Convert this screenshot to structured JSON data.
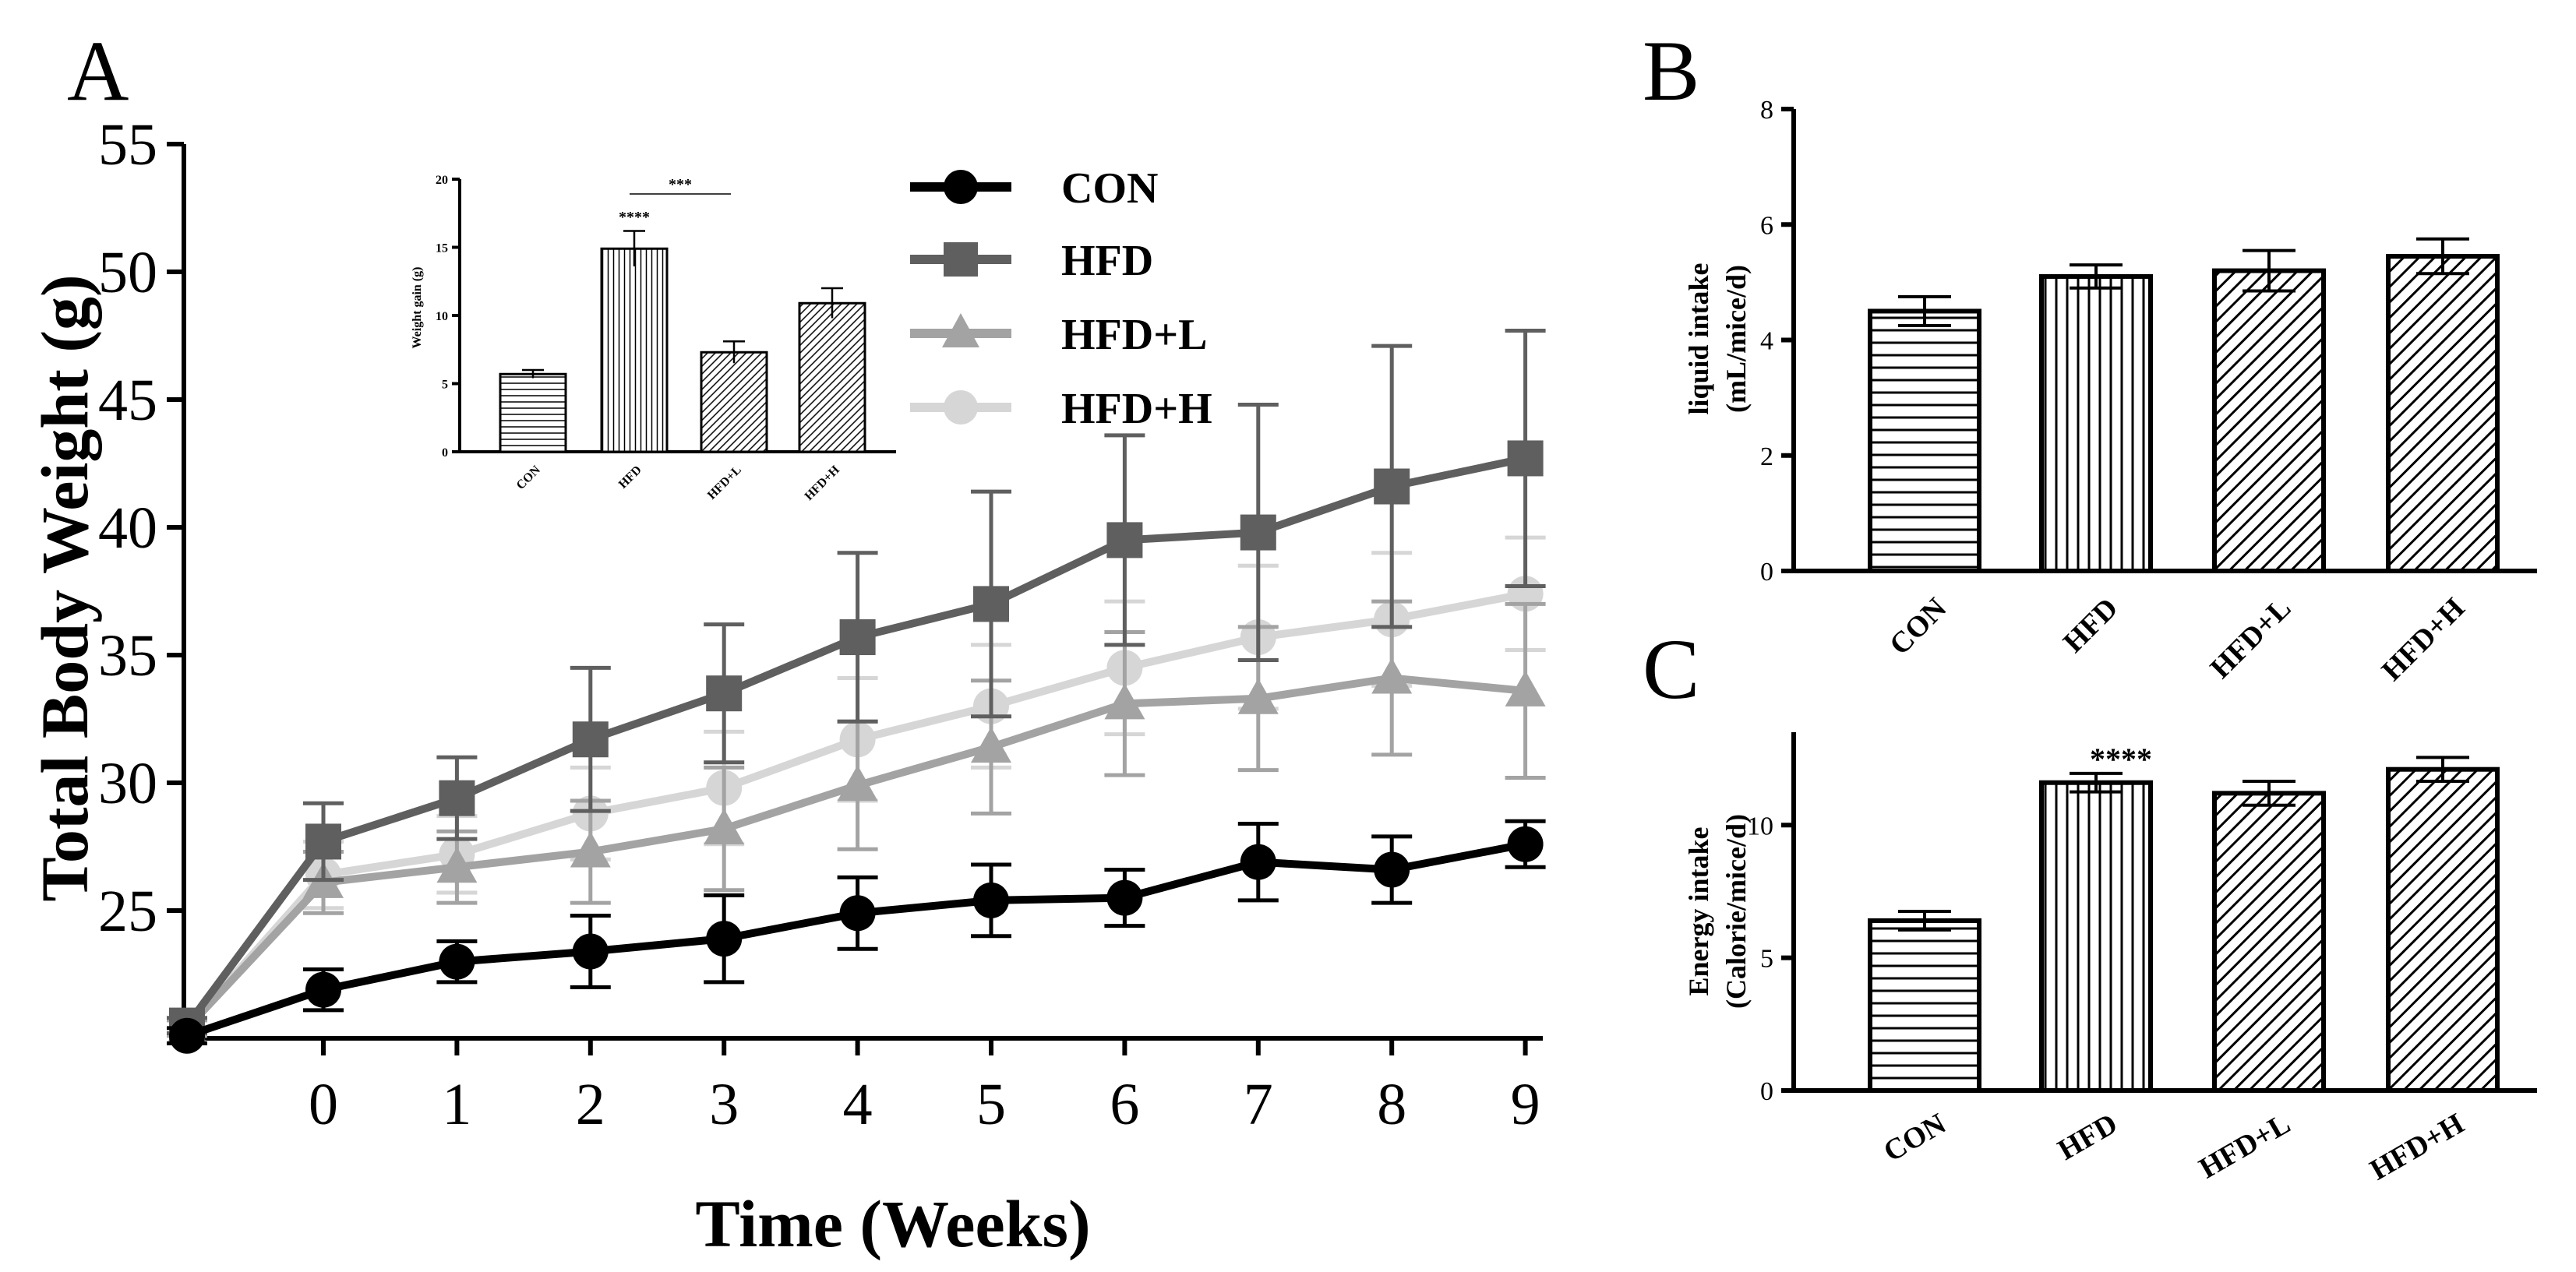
{
  "panels": {
    "A": "A",
    "B": "B",
    "C": "C"
  },
  "chart_data": [
    {
      "id": "A",
      "type": "line",
      "title": "",
      "xlabel": "Time (Weeks)",
      "ylabel": "Total Body Weight (g)",
      "x": [
        "",
        "0",
        "1",
        "2",
        "3",
        "4",
        "5",
        "6",
        "7",
        "8",
        "9"
      ],
      "ylim": [
        20,
        55
      ],
      "yticks": [
        "25",
        "30",
        "35",
        "40",
        "45",
        "50",
        "55"
      ],
      "series": [
        {
          "name": "CON",
          "color": "#000000",
          "marker": "circle",
          "values": [
            20.1,
            21.9,
            23.0,
            23.4,
            23.9,
            24.9,
            25.4,
            25.5,
            26.9,
            26.6,
            27.6
          ],
          "errors": [
            0.3,
            0.8,
            0.8,
            1.4,
            1.7,
            1.4,
            1.4,
            1.1,
            1.5,
            1.3,
            0.9
          ]
        },
        {
          "name": "HFD",
          "color": "#5f5f5f",
          "marker": "square",
          "values": [
            20.5,
            27.7,
            29.4,
            31.7,
            33.5,
            35.7,
            37.0,
            39.5,
            39.8,
            41.6,
            42.7
          ],
          "errors": [
            0.3,
            1.5,
            1.6,
            2.8,
            2.7,
            3.3,
            4.4,
            4.1,
            5.0,
            5.5,
            5.0
          ]
        },
        {
          "name": "HFD+L",
          "color": "#a3a3a3",
          "marker": "triangle",
          "values": [
            20.4,
            26.1,
            26.7,
            27.3,
            28.2,
            29.9,
            31.4,
            33.1,
            33.3,
            34.1,
            33.6
          ],
          "errors": [
            0.3,
            1.2,
            1.4,
            2.0,
            2.4,
            2.5,
            2.6,
            2.8,
            2.8,
            3.0,
            3.4
          ]
        },
        {
          "name": "HFD+H",
          "color": "#d6d6d6",
          "marker": "circle",
          "values": [
            20.4,
            26.4,
            27.2,
            28.8,
            29.8,
            31.7,
            33.0,
            34.5,
            35.7,
            36.4,
            37.4
          ],
          "errors": [
            0.3,
            1.3,
            1.5,
            1.8,
            2.2,
            2.4,
            2.4,
            2.6,
            2.8,
            2.6,
            2.2
          ]
        }
      ],
      "inset": {
        "type": "bar",
        "ylabel": "Weight gain (g)",
        "categories": [
          "CON",
          "HFD",
          "HFD+L",
          "HFD+H"
        ],
        "values": [
          5.7,
          14.9,
          7.3,
          10.9
        ],
        "errors": [
          0.3,
          1.3,
          0.8,
          1.1
        ],
        "ylim": [
          0,
          20
        ],
        "yticks": [
          "0",
          "5",
          "10",
          "15",
          "20"
        ],
        "annotations": [
          {
            "text": "****",
            "category": "HFD"
          },
          {
            "text": "***",
            "from": "HFD",
            "to": "HFD+L"
          }
        ]
      }
    },
    {
      "id": "B",
      "type": "bar",
      "ylabel_line1": "liquid intake",
      "ylabel_line2": "(mL/mice/d)",
      "categories": [
        "CON",
        "HFD",
        "HFD+L",
        "HFD+H"
      ],
      "values": [
        4.5,
        5.1,
        5.2,
        5.45
      ],
      "errors": [
        0.25,
        0.2,
        0.35,
        0.3
      ],
      "ylim": [
        0,
        8
      ],
      "yticks": [
        "0",
        "2",
        "4",
        "6",
        "8"
      ]
    },
    {
      "id": "C",
      "type": "bar",
      "ylabel_line1": "Energy intake",
      "ylabel_line2": "(Calorie/mice/d)",
      "categories": [
        "CON",
        "HFD",
        "HFD+L",
        "HFD+H"
      ],
      "values": [
        6.4,
        11.6,
        11.2,
        12.1
      ],
      "errors": [
        0.35,
        0.35,
        0.45,
        0.45
      ],
      "ylim": [
        0,
        13.5
      ],
      "yticks": [
        "0",
        "5",
        "10"
      ],
      "annotations": [
        {
          "text": "****",
          "category": "HFD"
        }
      ]
    }
  ]
}
